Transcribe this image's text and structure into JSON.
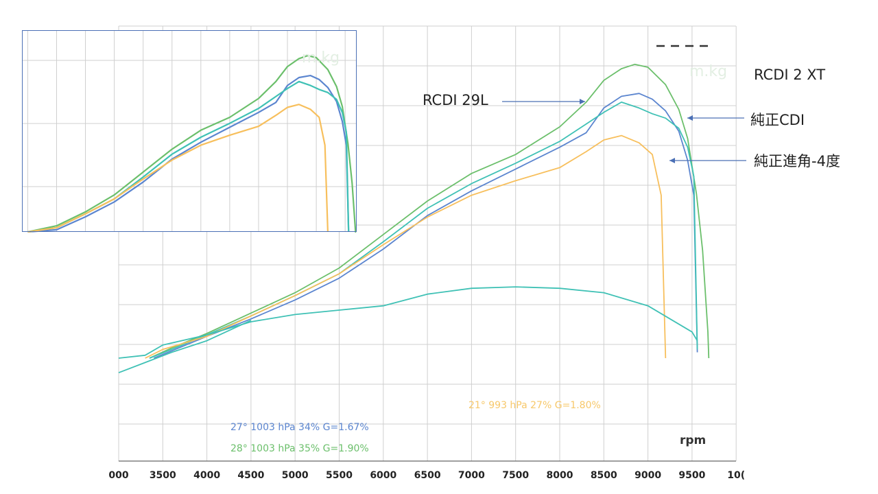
{
  "colors": {
    "rcdi_2xt": "#6bbf6b",
    "rcdi_29l": "#5b85cf",
    "stock_cdi": "#3fc1b5",
    "stock_minus4": "#f7bf5c",
    "arrow": "#4a6fb5",
    "grid": "#cfcfcf"
  },
  "callouts": {
    "rcdi_2xt": "RCDI  2 XT",
    "rcdi_29l": "RCDI 29L",
    "stock_cdi": "純正CDI",
    "stock_minus4": "純正進角-4度"
  },
  "conditions": {
    "blue": "27°  1003 hPa  34%    G=1.67%",
    "green": "28°  1003 hPa  35%    G=1.90%",
    "orange": "21°  993 hPa  27%    G=1.80%"
  },
  "rpm_label": "rpm",
  "ghost_unit": "m.kg",
  "chart_data": {
    "type": "line",
    "xlabel": "rpm",
    "xlim": [
      2950,
      10050
    ],
    "ticks": [
      "000",
      "3500",
      "4000",
      "4500",
      "5000",
      "5500",
      "6000",
      "6500",
      "7000",
      "7500",
      "8000",
      "8500",
      "9000",
      "9500",
      "10("
    ],
    "series": [
      {
        "name": "RCDI  2 XT",
        "color": "#6bbf6b",
        "kind": "power",
        "x": [
          3350,
          3600,
          4000,
          4500,
          5000,
          5500,
          6000,
          6500,
          7000,
          7500,
          8000,
          8300,
          8500,
          8700,
          8850,
          9000,
          9200,
          9350,
          9450,
          9550,
          9620,
          9680,
          9690
        ],
        "y": [
          0,
          7,
          17,
          31,
          45,
          62,
          85,
          108,
          127,
          140,
          159,
          176,
          191,
          199,
          202,
          200,
          188,
          171,
          151,
          113,
          74,
          18,
          0
        ]
      },
      {
        "name": "RCDI 29L",
        "color": "#5b85cf",
        "kind": "power",
        "x": [
          3400,
          3600,
          4000,
          4500,
          5000,
          5500,
          6000,
          6500,
          7000,
          7500,
          8000,
          8300,
          8500,
          8700,
          8900,
          9050,
          9200,
          9350,
          9450,
          9520,
          9560
        ],
        "y": [
          0,
          5,
          15,
          27,
          40,
          55,
          75,
          98,
          115,
          130,
          145,
          155,
          172,
          180,
          182,
          178,
          170,
          156,
          136,
          112,
          4
        ]
      },
      {
        "name": "純正CDI",
        "color": "#3fc1b5",
        "kind": "power",
        "x": [
          3350,
          3600,
          4000,
          4500,
          5000,
          5500,
          6000,
          6500,
          7000,
          7500,
          8000,
          8300,
          8500,
          8700,
          8900,
          9050,
          9200,
          9350,
          9450,
          9520,
          9560
        ],
        "y": [
          0,
          6,
          16,
          29,
          43,
          58,
          80,
          103,
          120,
          134,
          149,
          161,
          169,
          176,
          172,
          168,
          165,
          158,
          145,
          125,
          6
        ]
      },
      {
        "name": "純正進角-4度",
        "color": "#f7bf5c",
        "kind": "power",
        "x": [
          3300,
          3500,
          4000,
          4500,
          5000,
          5500,
          6000,
          6500,
          7000,
          7500,
          8000,
          8300,
          8500,
          8700,
          8900,
          9050,
          9150,
          9200
        ],
        "y": [
          0,
          6,
          15,
          29,
          43,
          58,
          78,
          97,
          112,
          122,
          131,
          142,
          150,
          153,
          148,
          140,
          112,
          0
        ]
      },
      {
        "name": "純正CDI",
        "color": "#3fc1b5",
        "kind": "torque",
        "x": [
          3000,
          3300,
          3500,
          4000,
          4500,
          5000,
          5500,
          6000,
          6500,
          7000,
          7500,
          8000,
          8500,
          9000,
          9500,
          9560
        ],
        "y": [
          0,
          2,
          9,
          16,
          25,
          30,
          33,
          36,
          44,
          48,
          49,
          48,
          45,
          36,
          18,
          12
        ]
      },
      {
        "name": "純正CDI",
        "color": "#3fc1b5",
        "kind": "power",
        "x": [
          3000,
          3300,
          3600,
          4000,
          4500
        ],
        "y": [
          -10,
          -3,
          4,
          12,
          26
        ]
      }
    ],
    "inset": {
      "title": "",
      "x_range": [
        3900,
        9700
      ],
      "description": "magnified view of the peak region"
    },
    "grid": true
  }
}
